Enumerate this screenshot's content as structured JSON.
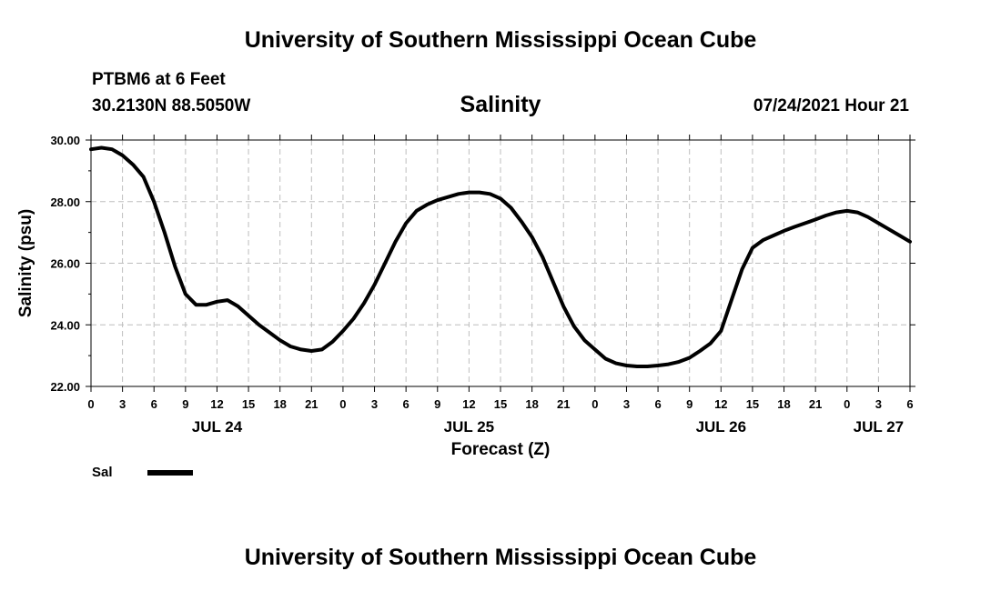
{
  "header": {
    "institution": "University of Southern Mississippi Ocean Cube",
    "station": "PTBM6 at 6 Feet",
    "coordinates": "30.2130N  88.5050W",
    "date": "07/24/2021 Hour 21"
  },
  "footer": {
    "institution": "University of Southern Mississippi Ocean Cube"
  },
  "chart_data": {
    "type": "line",
    "title": "Salinity",
    "xlabel": "Forecast (Z)",
    "ylabel": "Salinity (psu)",
    "ylim": [
      22,
      30
    ],
    "xlim": [
      0,
      78
    ],
    "x_unit": "hours since JUL 24 00Z",
    "y_ticks": [
      "22.00",
      "24.00",
      "26.00",
      "28.00",
      "30.00"
    ],
    "x_ticks": [
      "0",
      "3",
      "6",
      "9",
      "12",
      "15",
      "18",
      "21",
      "0",
      "3",
      "6",
      "9",
      "12",
      "15",
      "18",
      "21",
      "0",
      "3",
      "6",
      "9",
      "12",
      "15",
      "18",
      "21",
      "0",
      "3",
      "6"
    ],
    "day_labels": [
      {
        "label": "JUL 24",
        "hour": 12
      },
      {
        "label": "JUL 25",
        "hour": 36
      },
      {
        "label": "JUL 26",
        "hour": 60
      },
      {
        "label": "JUL 27",
        "hour": 75
      }
    ],
    "grid": true,
    "legend": "bottom-left",
    "series": [
      {
        "name": "Sal",
        "color": "#000000",
        "x": [
          0,
          1,
          2,
          3,
          4,
          5,
          6,
          7,
          8,
          9,
          10,
          11,
          12,
          13,
          14,
          15,
          16,
          17,
          18,
          19,
          20,
          21,
          22,
          23,
          24,
          25,
          26,
          27,
          28,
          29,
          30,
          31,
          32,
          33,
          34,
          35,
          36,
          37,
          38,
          39,
          40,
          41,
          42,
          43,
          44,
          45,
          46,
          47,
          48,
          49,
          50,
          51,
          52,
          53,
          54,
          55,
          56,
          57,
          58,
          59,
          60,
          61,
          62,
          63,
          64,
          65,
          66,
          67,
          68,
          69,
          70,
          71,
          72,
          73,
          74,
          75,
          76,
          77,
          78
        ],
        "values": [
          29.7,
          29.75,
          29.7,
          29.5,
          29.2,
          28.8,
          28.0,
          27.0,
          25.9,
          25.0,
          24.65,
          24.65,
          24.75,
          24.8,
          24.6,
          24.3,
          24.0,
          23.75,
          23.5,
          23.3,
          23.2,
          23.15,
          23.2,
          23.45,
          23.8,
          24.2,
          24.7,
          25.3,
          26.0,
          26.7,
          27.3,
          27.7,
          27.9,
          28.05,
          28.15,
          28.25,
          28.3,
          28.3,
          28.25,
          28.1,
          27.8,
          27.35,
          26.85,
          26.2,
          25.4,
          24.6,
          23.95,
          23.5,
          23.2,
          22.9,
          22.75,
          22.68,
          22.65,
          22.65,
          22.68,
          22.72,
          22.8,
          22.93,
          23.15,
          23.4,
          23.8,
          24.8,
          25.8,
          26.5,
          26.75,
          26.9,
          27.05,
          27.18,
          27.3,
          27.42,
          27.55,
          27.65,
          27.7,
          27.65,
          27.5,
          27.3,
          27.1,
          26.9,
          26.7
        ]
      }
    ]
  }
}
